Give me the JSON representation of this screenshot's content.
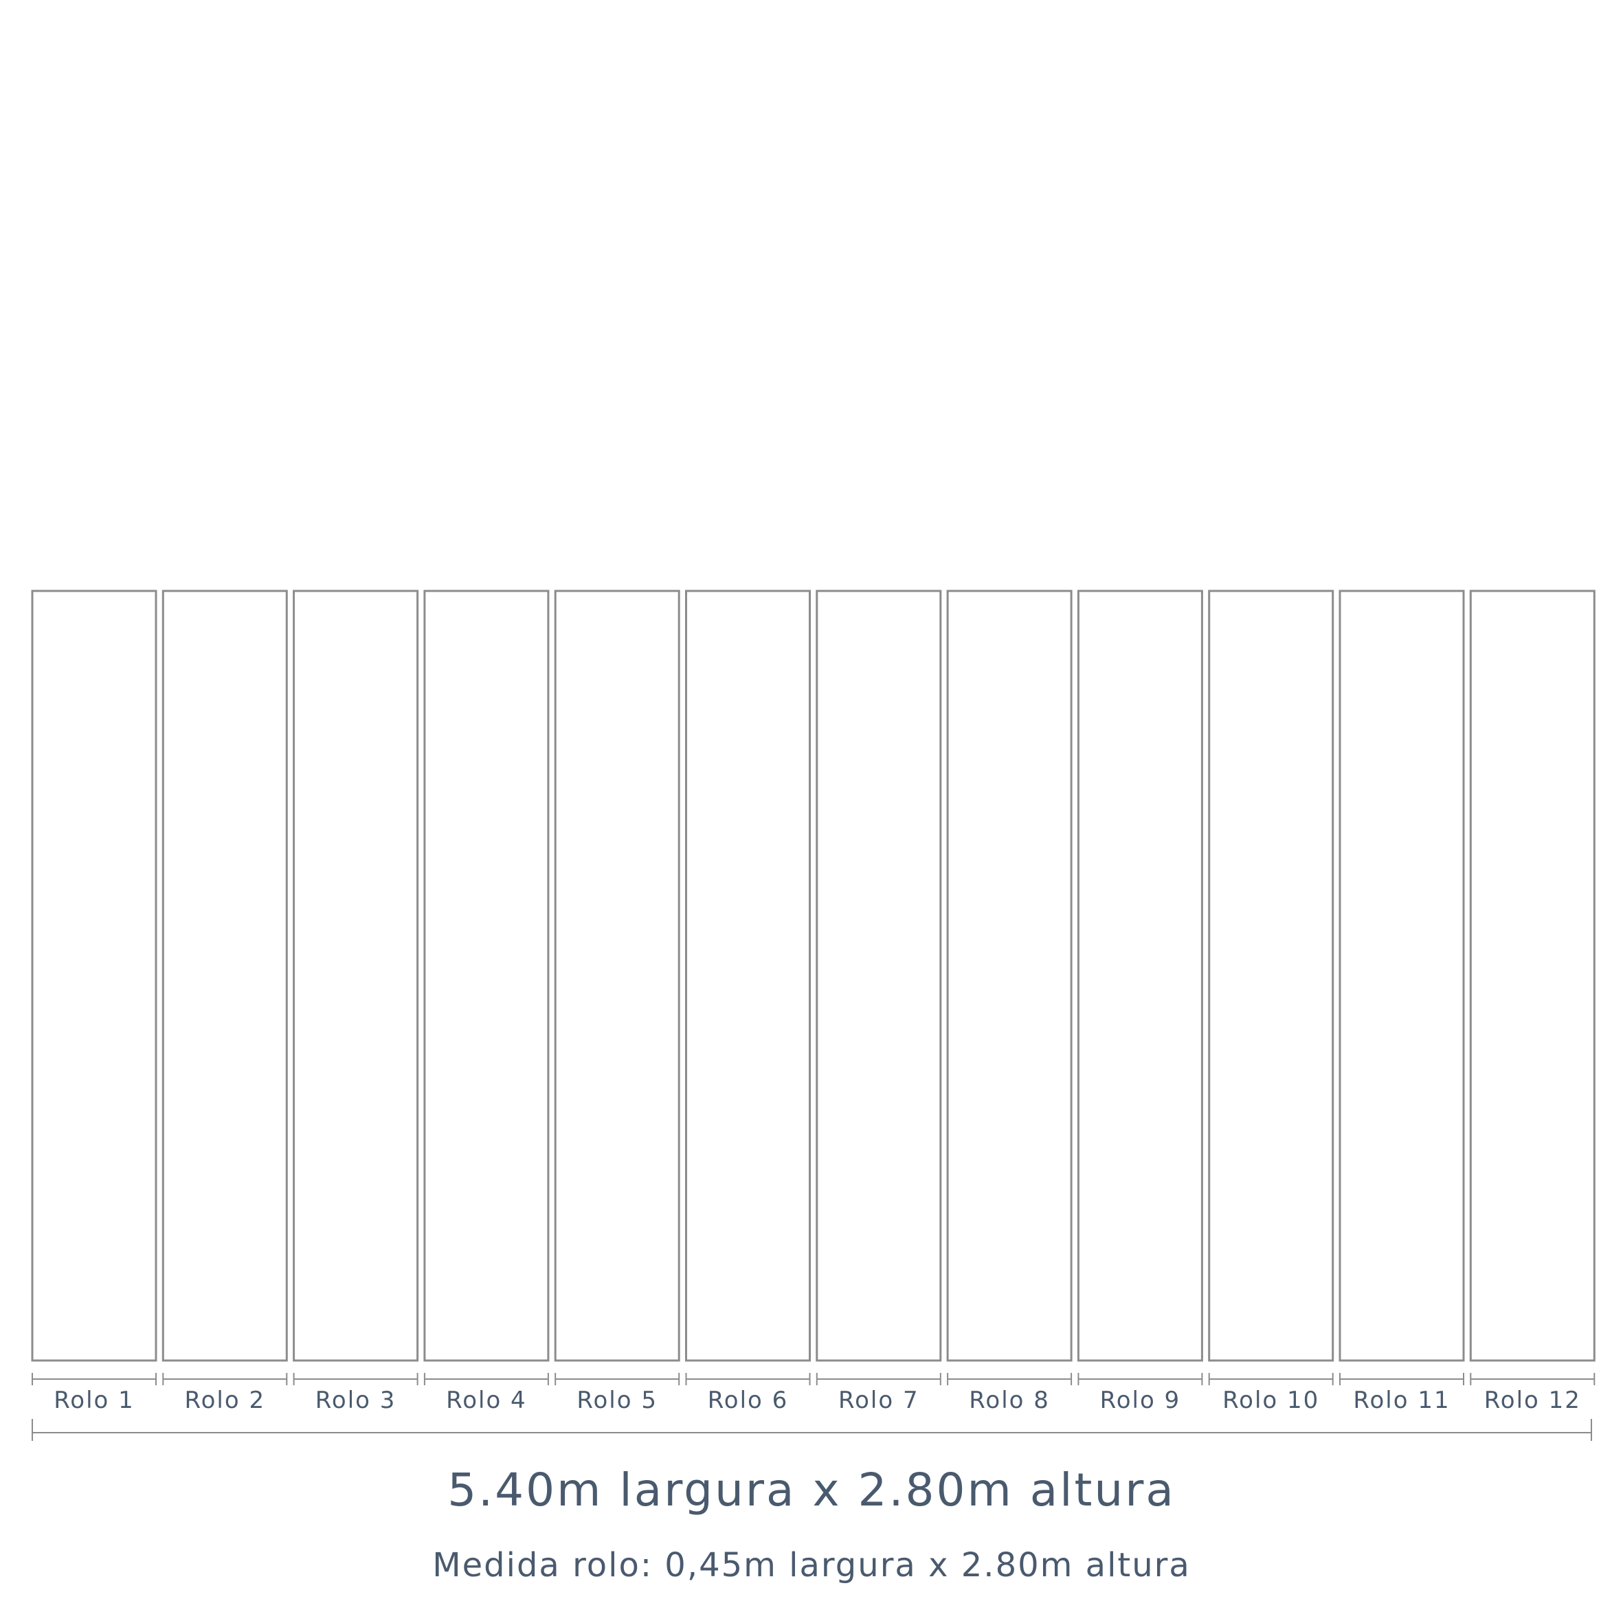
{
  "rolls": [
    "Rolo 1",
    "Rolo 2",
    "Rolo 3",
    "Rolo 4",
    "Rolo 5",
    "Rolo 6",
    "Rolo 7",
    "Rolo 8",
    "Rolo 9",
    "Rolo 10",
    "Rolo 11",
    "Rolo 12"
  ],
  "title": "5.40m largura x 2.80m altura",
  "subtitle": "Medida rolo: 0,45m largura x 2.80m altura",
  "colors": {
    "rose": "#db737d",
    "peach": "#fcd1c5",
    "ochre": "#e1af82",
    "mist": "#bed1d2",
    "sage": "#89a5a7",
    "cream": "#f5efe4",
    "panel_border": "#8c8c8c",
    "text": "#4a5a6e"
  }
}
